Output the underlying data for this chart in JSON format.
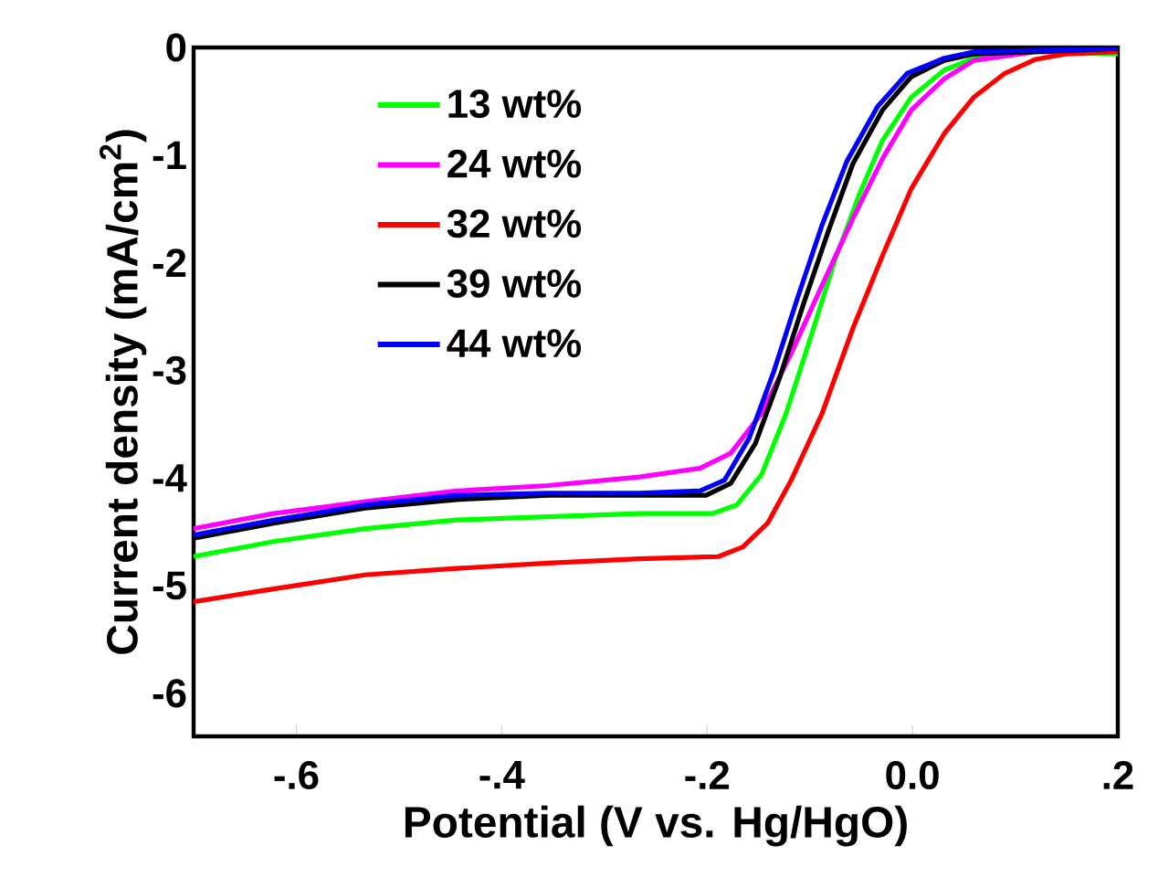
{
  "chart_data": {
    "type": "line",
    "xlabel": "Potential (V vs. Hg/HgO)",
    "ylabel": "Current density (mA/cm$^{2}$)",
    "xlim": [
      -0.7,
      0.2
    ],
    "ylim": [
      -6.4,
      0
    ],
    "xticks": [
      {
        "value": -0.6,
        "label": "-.6"
      },
      {
        "value": -0.4,
        "label": "-.4"
      },
      {
        "value": -0.2,
        "label": "-.2"
      },
      {
        "value": 0.0,
        "label": "0.0"
      },
      {
        "value": 0.2,
        "label": ".2"
      }
    ],
    "yticks": [
      0,
      -1,
      -2,
      -3,
      -4,
      -5,
      -6
    ],
    "legend": "top left",
    "marker": "none",
    "line_style": "solid",
    "grid": false,
    "series": [
      {
        "name": "13 wt%",
        "color": "#00ff00",
        "x": [
          -0.7,
          -0.622,
          -0.533,
          -0.444,
          -0.355,
          -0.266,
          -0.195,
          -0.171,
          -0.147,
          -0.123,
          -0.1,
          -0.076,
          -0.052,
          -0.029,
          -0.001,
          0.031,
          0.06,
          0.12,
          0.2
        ],
        "values": [
          -4.73,
          -4.59,
          -4.47,
          -4.39,
          -4.36,
          -4.33,
          -4.33,
          -4.25,
          -3.97,
          -3.4,
          -2.72,
          -1.99,
          -1.37,
          -0.86,
          -0.46,
          -0.21,
          -0.1,
          -0.04,
          -0.06
        ]
      },
      {
        "name": "24 wt%",
        "color": "#ff00ff",
        "x": [
          -0.7,
          -0.622,
          -0.533,
          -0.444,
          -0.355,
          -0.266,
          -0.207,
          -0.177,
          -0.147,
          -0.118,
          -0.088,
          -0.058,
          -0.029,
          -0.001,
          0.031,
          0.06,
          0.12,
          0.2
        ],
        "values": [
          -4.47,
          -4.33,
          -4.22,
          -4.12,
          -4.07,
          -3.99,
          -3.91,
          -3.77,
          -3.4,
          -2.84,
          -2.21,
          -1.59,
          -1.03,
          -0.58,
          -0.29,
          -0.12,
          -0.04,
          -0.02
        ]
      },
      {
        "name": "32 wt%",
        "color": "#ff0000",
        "x": [
          -0.7,
          -0.622,
          -0.533,
          -0.444,
          -0.355,
          -0.266,
          -0.189,
          -0.165,
          -0.141,
          -0.118,
          -0.088,
          -0.058,
          -0.029,
          -0.001,
          0.031,
          0.06,
          0.09,
          0.12,
          0.149,
          0.2
        ],
        "values": [
          -5.15,
          -5.03,
          -4.9,
          -4.84,
          -4.79,
          -4.75,
          -4.73,
          -4.64,
          -4.42,
          -4.02,
          -3.4,
          -2.61,
          -1.93,
          -1.31,
          -0.8,
          -0.46,
          -0.24,
          -0.11,
          -0.06,
          -0.04
        ]
      },
      {
        "name": "39 wt%",
        "color": "#000000",
        "x": [
          -0.7,
          -0.622,
          -0.533,
          -0.444,
          -0.355,
          -0.266,
          -0.201,
          -0.177,
          -0.153,
          -0.129,
          -0.106,
          -0.082,
          -0.058,
          -0.029,
          -0.001,
          0.031,
          0.06,
          0.2
        ],
        "values": [
          -4.56,
          -4.42,
          -4.28,
          -4.2,
          -4.16,
          -4.16,
          -4.16,
          -4.05,
          -3.68,
          -3.06,
          -2.38,
          -1.71,
          -1.08,
          -0.58,
          -0.27,
          -0.12,
          -0.06,
          -0.01
        ]
      },
      {
        "name": "44 wt%",
        "color": "#0000ff",
        "x": [
          -0.7,
          -0.622,
          -0.533,
          -0.444,
          -0.355,
          -0.266,
          -0.207,
          -0.183,
          -0.159,
          -0.135,
          -0.112,
          -0.088,
          -0.064,
          -0.034,
          -0.005,
          0.031,
          0.06,
          0.2
        ],
        "values": [
          -4.53,
          -4.39,
          -4.25,
          -4.16,
          -4.14,
          -4.14,
          -4.12,
          -4.02,
          -3.63,
          -3.01,
          -2.33,
          -1.65,
          -1.06,
          -0.55,
          -0.24,
          -0.1,
          -0.04,
          -0.01
        ]
      }
    ]
  }
}
